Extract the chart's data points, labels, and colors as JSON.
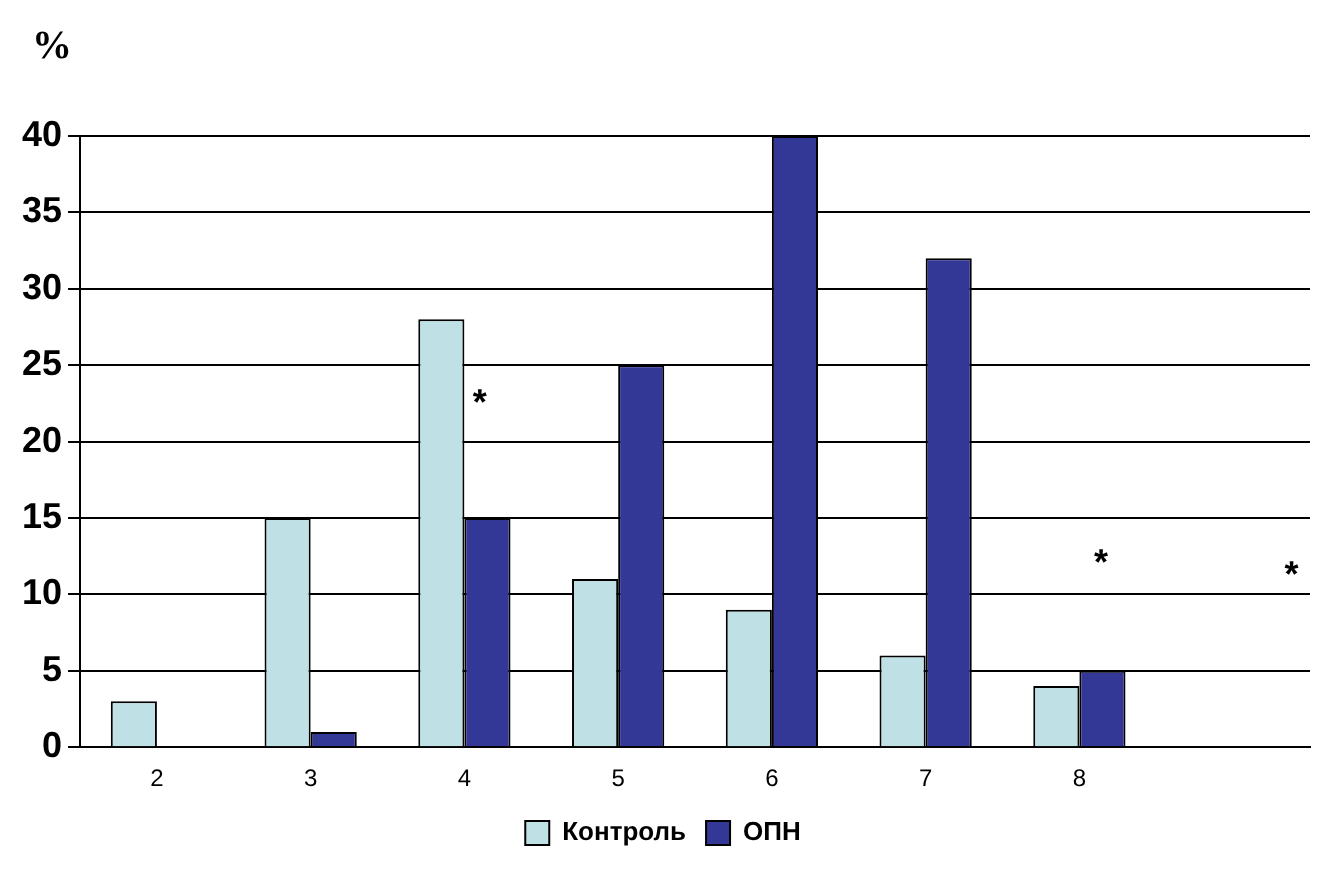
{
  "chart_data": {
    "type": "bar",
    "ylabel": "%",
    "categories": [
      "2",
      "3",
      "4",
      "5",
      "6",
      "7",
      "8",
      null
    ],
    "series": [
      {
        "name": "Контроль",
        "color": "#bfe0e4",
        "values": [
          3,
          15,
          28,
          11,
          9,
          6,
          4,
          null
        ]
      },
      {
        "name": "ОПН",
        "color": "#333795",
        "values": [
          null,
          1,
          15,
          25,
          40,
          32,
          5,
          null
        ]
      }
    ],
    "ylim": [
      0,
      40
    ],
    "yticks": [
      0,
      5,
      10,
      15,
      20,
      25,
      30,
      35,
      40
    ],
    "grid": "y",
    "legend": "bottom",
    "annotations": [
      {
        "text": "*",
        "x": "4",
        "y": 23
      },
      "*",
      "*"
    ]
  }
}
